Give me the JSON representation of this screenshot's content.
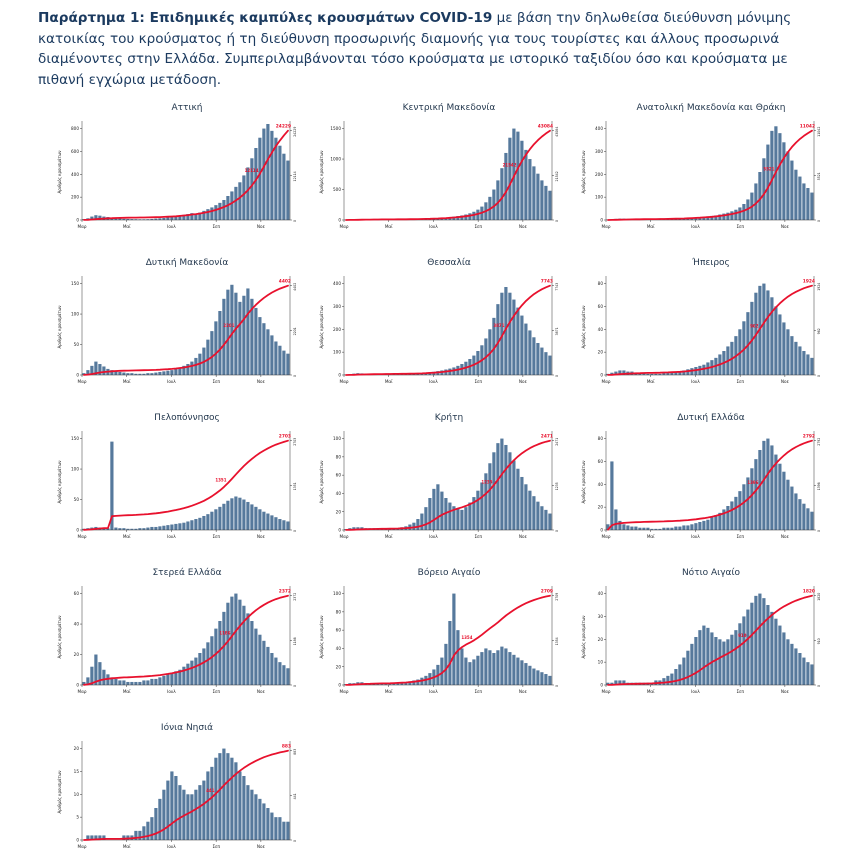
{
  "header": {
    "bold": "Παράρτημα 1: Επιδημικές καμπύλες κρουσμάτων COVID-19",
    "rest": " με βάση την δηλωθείσα διεύθυνση μόνιμης κατοικίας του κρούσματος ή τη διεύθυνση προσωρινής διαμονής για τους τουρίστες και άλλους προσωρινά διαμένοντες στην Ελλάδα. Συμπεριλαμβάνονται τόσο κρούσματα με ιστορικό ταξιδίου όσο και κρούσματα με πιθανή εγχώρια μετάδοση."
  },
  "colors": {
    "bar": "#56799c",
    "line": "#e8112d",
    "axis": "#333333",
    "tick_text": "#222222",
    "title_text": "#24384e",
    "header_text": "#1b3a5f"
  },
  "chart_data": [
    {
      "type": "bar",
      "title": "Αττική",
      "ylabel": "Αριθμός κρουσμάτων",
      "x_ticks": [
        "Μαρ",
        "Μαϊ",
        "Ιουλ",
        "Σεπ",
        "Νοε"
      ],
      "y_ticks": [
        0,
        200,
        400,
        600,
        800
      ],
      "total": 24229,
      "mid_label": 12114,
      "values": [
        8,
        15,
        30,
        42,
        38,
        30,
        26,
        22,
        18,
        14,
        10,
        9,
        8,
        7,
        6,
        6,
        7,
        9,
        12,
        15,
        18,
        22,
        26,
        30,
        38,
        45,
        52,
        60,
        55,
        65,
        80,
        95,
        110,
        130,
        150,
        175,
        210,
        250,
        290,
        330,
        390,
        460,
        540,
        630,
        720,
        800,
        840,
        780,
        720,
        650,
        580,
        520
      ]
    },
    {
      "type": "bar",
      "title": "Κεντρική Μακεδονία",
      "ylabel": "Αριθμός κρουσμάτων",
      "x_ticks": [
        "Μαρ",
        "Μαϊ",
        "Ιουλ",
        "Σεπ",
        "Νοε"
      ],
      "y_ticks": [
        0,
        500,
        1000,
        1500
      ],
      "total": 43084,
      "mid_label": 21542,
      "values": [
        5,
        8,
        12,
        15,
        14,
        12,
        10,
        9,
        8,
        7,
        6,
        6,
        5,
        5,
        6,
        7,
        8,
        10,
        12,
        15,
        18,
        22,
        26,
        30,
        35,
        40,
        48,
        56,
        65,
        75,
        90,
        110,
        135,
        170,
        220,
        290,
        380,
        500,
        650,
        850,
        1100,
        1350,
        1500,
        1450,
        1300,
        1150,
        1000,
        880,
        760,
        650,
        560,
        480
      ]
    },
    {
      "type": "bar",
      "title": "Ανατολική Μακεδονία και Θράκη",
      "ylabel": "Αριθμός κρουσμάτων",
      "x_ticks": [
        "Μαρ",
        "Μαϊ",
        "Ιουλ",
        "Σεπ",
        "Νοε"
      ],
      "y_ticks": [
        0,
        100,
        200,
        300,
        400
      ],
      "total": 11042,
      "mid_label": 5521,
      "values": [
        2,
        3,
        5,
        6,
        6,
        5,
        4,
        4,
        3,
        3,
        3,
        2,
        2,
        2,
        3,
        3,
        4,
        5,
        6,
        7,
        8,
        9,
        10,
        12,
        14,
        16,
        18,
        20,
        24,
        28,
        32,
        38,
        45,
        55,
        70,
        90,
        120,
        160,
        210,
        270,
        330,
        390,
        410,
        380,
        340,
        300,
        260,
        220,
        190,
        160,
        140,
        120
      ]
    },
    {
      "type": "bar",
      "title": "Δυτική Μακεδονία",
      "ylabel": "Αριθμός κρουσμάτων",
      "x_ticks": [
        "Μαρ",
        "Μαϊ",
        "Ιουλ",
        "Σεπ",
        "Νοε"
      ],
      "y_ticks": [
        0,
        50,
        100,
        150
      ],
      "total": 4402,
      "mid_label": 2201,
      "values": [
        3,
        8,
        15,
        22,
        18,
        14,
        10,
        8,
        6,
        5,
        4,
        3,
        3,
        2,
        2,
        2,
        3,
        3,
        4,
        5,
        6,
        7,
        8,
        10,
        12,
        15,
        18,
        22,
        28,
        35,
        45,
        58,
        72,
        88,
        105,
        125,
        140,
        148,
        135,
        120,
        130,
        142,
        125,
        110,
        95,
        85,
        75,
        65,
        55,
        48,
        40,
        35
      ]
    },
    {
      "type": "bar",
      "title": "Θεσσαλία",
      "ylabel": "Αριθμός κρουσμάτων",
      "x_ticks": [
        "Μαρ",
        "Μαϊ",
        "Ιουλ",
        "Σεπ",
        "Νοε"
      ],
      "y_ticks": [
        0,
        100,
        200,
        300,
        400
      ],
      "total": 7743,
      "mid_label": 3871,
      "values": [
        2,
        4,
        6,
        8,
        7,
        6,
        5,
        4,
        4,
        3,
        3,
        2,
        2,
        2,
        3,
        3,
        4,
        5,
        6,
        8,
        10,
        12,
        14,
        17,
        20,
        24,
        28,
        33,
        40,
        48,
        58,
        70,
        85,
        105,
        130,
        160,
        200,
        250,
        310,
        360,
        385,
        360,
        330,
        295,
        260,
        225,
        195,
        165,
        140,
        120,
        100,
        85
      ]
    },
    {
      "type": "bar",
      "title": "Ήπειρος",
      "ylabel": "Αριθμός κρουσμάτων",
      "x_ticks": [
        "Μαρ",
        "Μαϊ",
        "Ιουλ",
        "Σεπ",
        "Νοε"
      ],
      "y_ticks": [
        0,
        20,
        40,
        60,
        80
      ],
      "total": 1924,
      "mid_label": 962,
      "values": [
        1,
        2,
        3,
        4,
        4,
        3,
        3,
        2,
        2,
        2,
        1,
        1,
        1,
        1,
        2,
        2,
        2,
        3,
        3,
        4,
        5,
        6,
        7,
        8,
        9,
        11,
        13,
        15,
        18,
        21,
        25,
        29,
        34,
        40,
        47,
        55,
        64,
        72,
        78,
        80,
        74,
        68,
        60,
        53,
        46,
        40,
        34,
        29,
        25,
        21,
        18,
        15
      ]
    },
    {
      "type": "bar",
      "title": "Πελοπόννησος",
      "ylabel": "Αριθμός κρουσμάτων",
      "x_ticks": [
        "Μαρ",
        "Μαϊ",
        "Ιουλ",
        "Σεπ",
        "Νοε"
      ],
      "y_ticks": [
        0,
        50,
        100,
        150
      ],
      "total": 2703,
      "mid_label": 1351,
      "values": [
        2,
        3,
        4,
        5,
        4,
        4,
        3,
        145,
        4,
        3,
        3,
        2,
        2,
        2,
        3,
        3,
        4,
        5,
        5,
        6,
        7,
        8,
        9,
        10,
        11,
        12,
        14,
        16,
        18,
        20,
        23,
        26,
        30,
        34,
        38,
        43,
        48,
        52,
        55,
        53,
        50,
        46,
        42,
        38,
        34,
        30,
        27,
        24,
        21,
        18,
        16,
        14
      ]
    },
    {
      "type": "bar",
      "title": "Κρήτη",
      "ylabel": "Αριθμός κρουσμάτων",
      "x_ticks": [
        "Μαρ",
        "Μαϊ",
        "Ιουλ",
        "Σεπ",
        "Νοε"
      ],
      "y_ticks": [
        0,
        20,
        40,
        60,
        80,
        100
      ],
      "total": 2471,
      "mid_label": 1235,
      "values": [
        1,
        2,
        3,
        3,
        3,
        2,
        2,
        2,
        2,
        1,
        1,
        1,
        2,
        2,
        3,
        4,
        6,
        8,
        12,
        18,
        25,
        35,
        45,
        50,
        42,
        35,
        30,
        26,
        24,
        22,
        25,
        30,
        36,
        43,
        52,
        62,
        73,
        85,
        95,
        100,
        93,
        85,
        76,
        67,
        58,
        50,
        43,
        37,
        31,
        26,
        22,
        18
      ]
    },
    {
      "type": "bar",
      "title": "Δυτική Ελλάδα",
      "ylabel": "Αριθμός κρουσμάτων",
      "x_ticks": [
        "Μαρ",
        "Μαϊ",
        "Ιουλ",
        "Σεπ",
        "Νοε"
      ],
      "y_ticks": [
        0,
        20,
        40,
        60,
        80
      ],
      "total": 2792,
      "mid_label": 1396,
      "values": [
        5,
        60,
        18,
        8,
        5,
        4,
        3,
        3,
        2,
        2,
        2,
        1,
        1,
        1,
        2,
        2,
        2,
        3,
        3,
        4,
        4,
        5,
        6,
        7,
        8,
        9,
        11,
        13,
        15,
        18,
        21,
        25,
        29,
        34,
        40,
        46,
        54,
        62,
        70,
        78,
        80,
        74,
        66,
        58,
        51,
        44,
        38,
        32,
        27,
        23,
        19,
        16
      ]
    },
    {
      "type": "bar",
      "title": "Στερεά Ελλάδα",
      "ylabel": "Αριθμός κρουσμάτων",
      "x_ticks": [
        "Μαρ",
        "Μαϊ",
        "Ιουλ",
        "Σεπ",
        "Νοε"
      ],
      "y_ticks": [
        0,
        20,
        40,
        60
      ],
      "total": 2372,
      "mid_label": 1186,
      "values": [
        2,
        5,
        12,
        20,
        15,
        10,
        7,
        5,
        4,
        3,
        3,
        2,
        2,
        2,
        2,
        3,
        3,
        4,
        4,
        5,
        6,
        7,
        8,
        9,
        10,
        12,
        14,
        16,
        18,
        21,
        24,
        28,
        32,
        37,
        42,
        48,
        54,
        58,
        60,
        56,
        52,
        47,
        42,
        37,
        33,
        29,
        25,
        21,
        18,
        15,
        13,
        11
      ]
    },
    {
      "type": "bar",
      "title": "Βόρειο Αιγαίο",
      "ylabel": "Αριθμός κρουσμάτων",
      "x_ticks": [
        "Μαρ",
        "Μαϊ",
        "Ιουλ",
        "Σεπ",
        "Νοε"
      ],
      "y_ticks": [
        0,
        20,
        40,
        60,
        80,
        100
      ],
      "total": 2709,
      "mid_label": 1354,
      "values": [
        1,
        2,
        2,
        3,
        3,
        2,
        2,
        2,
        1,
        1,
        1,
        1,
        2,
        2,
        3,
        3,
        4,
        5,
        6,
        8,
        10,
        13,
        17,
        22,
        30,
        45,
        70,
        100,
        60,
        40,
        30,
        25,
        28,
        32,
        36,
        40,
        38,
        35,
        38,
        42,
        40,
        36,
        33,
        30,
        27,
        24,
        21,
        18,
        16,
        14,
        12,
        10
      ]
    },
    {
      "type": "bar",
      "title": "Νότιο Αιγαίο",
      "ylabel": "Αριθμός κρουσμάτων",
      "x_ticks": [
        "Μαρ",
        "Μαϊ",
        "Ιουλ",
        "Σεπ",
        "Νοε"
      ],
      "y_ticks": [
        0,
        10,
        20,
        30,
        40
      ],
      "total": 1820,
      "mid_label": 910,
      "values": [
        1,
        1,
        2,
        2,
        2,
        1,
        1,
        1,
        1,
        1,
        1,
        1,
        2,
        2,
        3,
        4,
        5,
        7,
        9,
        12,
        15,
        18,
        21,
        24,
        26,
        25,
        23,
        21,
        20,
        19,
        20,
        22,
        24,
        27,
        30,
        33,
        36,
        39,
        40,
        38,
        35,
        32,
        29,
        26,
        23,
        20,
        18,
        16,
        14,
        12,
        10,
        9
      ]
    },
    {
      "type": "bar",
      "title": "Ιόνια Νησιά",
      "ylabel": "Αριθμός κρουσμάτων",
      "x_ticks": [
        "Μαρ",
        "Μαϊ",
        "Ιουλ",
        "Σεπ",
        "Νοε"
      ],
      "y_ticks": [
        0,
        5,
        10,
        15,
        20
      ],
      "total": 883,
      "mid_label": 441,
      "values": [
        0,
        1,
        1,
        1,
        1,
        1,
        0,
        0,
        0,
        0,
        1,
        1,
        1,
        2,
        2,
        3,
        4,
        5,
        7,
        9,
        11,
        13,
        15,
        14,
        12,
        11,
        10,
        10,
        11,
        12,
        13,
        15,
        16,
        18,
        19,
        20,
        19,
        18,
        17,
        15,
        14,
        12,
        11,
        10,
        9,
        8,
        7,
        6,
        5,
        5,
        4,
        4
      ]
    }
  ]
}
